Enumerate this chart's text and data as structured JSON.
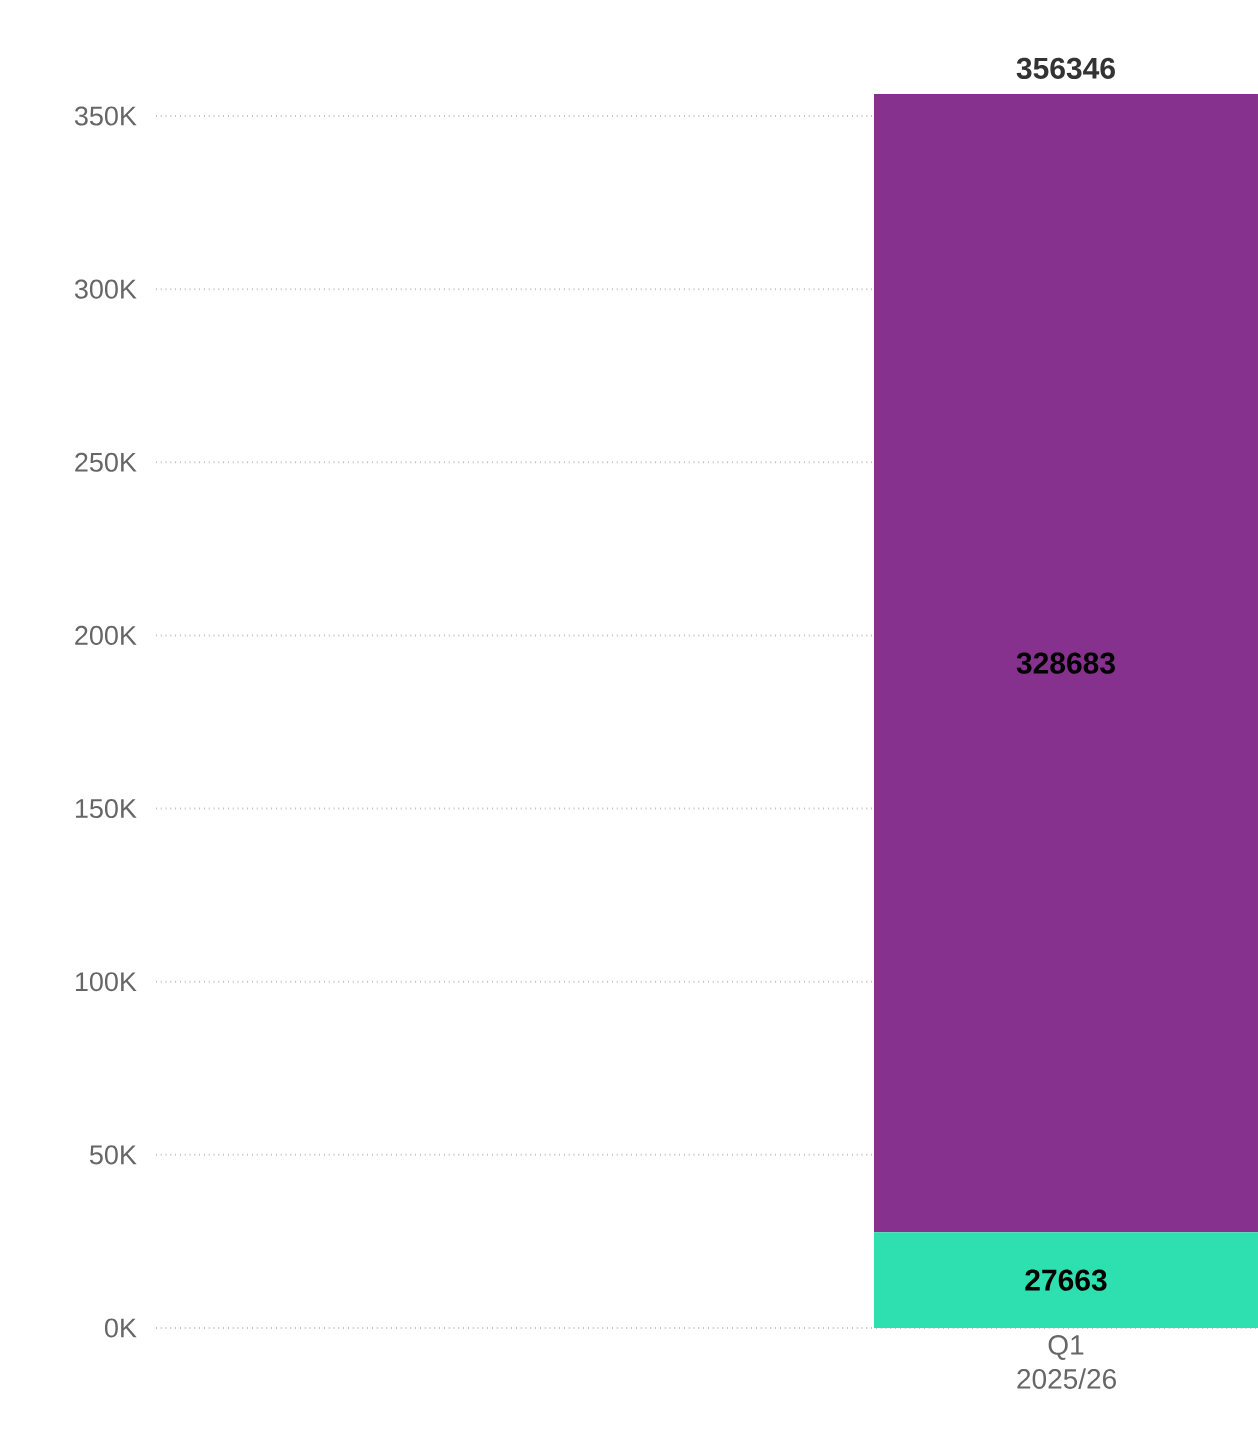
{
  "chart_data": {
    "type": "bar",
    "stacked": true,
    "categories": [
      "Q1 2025/26"
    ],
    "series": [
      {
        "color": "#2ee0b0",
        "values": [
          27663
        ]
      },
      {
        "color": "#86318e",
        "values": [
          328683
        ]
      }
    ],
    "data_labels": true,
    "totals": [
      "356346"
    ],
    "grid": "y",
    "ylim": [
      0,
      356346
    ],
    "yticks": [
      {
        "value": 0,
        "label": "0K"
      },
      {
        "value": 50000,
        "label": "50K"
      },
      {
        "value": 100000,
        "label": "100K"
      },
      {
        "value": 150000,
        "label": "150K"
      },
      {
        "value": 200000,
        "label": "200K"
      },
      {
        "value": 250000,
        "label": "250K"
      },
      {
        "value": 300000,
        "label": "300K"
      },
      {
        "value": 350000,
        "label": "350K"
      }
    ]
  }
}
